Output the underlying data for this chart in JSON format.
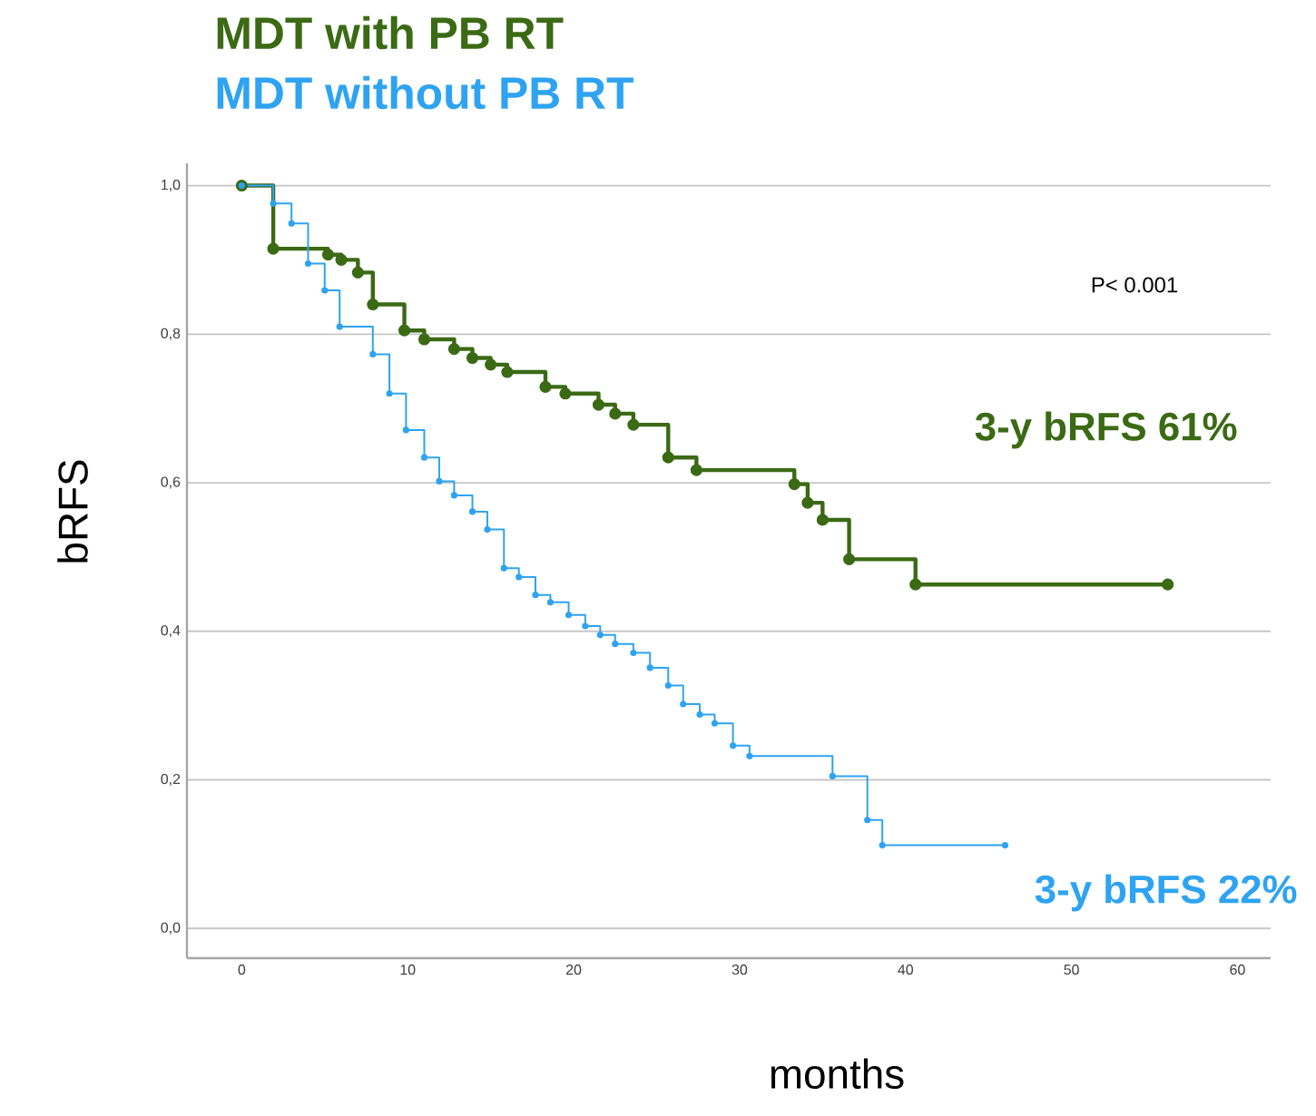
{
  "chart_data": {
    "type": "step",
    "xlabel": "months",
    "ylabel": "bRFS",
    "xlim": [
      -3.3,
      62
    ],
    "ylim": [
      -0.04,
      1.03
    ],
    "xticks": [
      0,
      10,
      20,
      30,
      40,
      50,
      60
    ],
    "yticks": [
      {
        "value": 0,
        "label": "0,0"
      },
      {
        "value": 0.2,
        "label": "0,2"
      },
      {
        "value": 0.4,
        "label": "0,4"
      },
      {
        "value": 0.6,
        "label": "0,6"
      },
      {
        "value": 0.8,
        "label": "0,8"
      },
      {
        "value": 1.0,
        "label": "1,0"
      }
    ],
    "grid": "y",
    "marker": "circle",
    "line_style": "solid",
    "annotations": [
      "P< 0.001",
      "3-y bRFS 61%",
      "3-y bRFS 22%"
    ],
    "series": [
      {
        "name": "MDT with PB RT",
        "color": "#3b6a14",
        "x": [
          0,
          1.9,
          5.2,
          6.0,
          7.0,
          7.9,
          9.8,
          11,
          12.8,
          13.9,
          15,
          16,
          18.3,
          19.5,
          21.5,
          22.5,
          23.6,
          25.7,
          27.4,
          33.3,
          34.1,
          35,
          36.6,
          40.6,
          55.8
        ],
        "values": [
          1.0,
          0.915,
          0.907,
          0.9,
          0.883,
          0.84,
          0.805,
          0.793,
          0.78,
          0.768,
          0.759,
          0.749,
          0.729,
          0.72,
          0.705,
          0.693,
          0.678,
          0.634,
          0.617,
          0.598,
          0.573,
          0.55,
          0.497,
          0.463,
          0.463
        ]
      },
      {
        "name": "MDT without PB RT",
        "color": "#2ea3f2",
        "x": [
          0,
          1.9,
          3.0,
          4.0,
          5.0,
          5.9,
          7.9,
          8.9,
          9.9,
          11,
          11.9,
          12.8,
          13.9,
          14.8,
          15.8,
          16.7,
          17.7,
          18.6,
          19.7,
          20.7,
          21.6,
          22.5,
          23.6,
          24.6,
          25.7,
          26.6,
          27.6,
          28.5,
          29.6,
          30.6,
          35.6,
          37.7,
          38.6,
          46
        ],
        "values": [
          1.0,
          0.976,
          0.949,
          0.895,
          0.859,
          0.81,
          0.773,
          0.72,
          0.671,
          0.634,
          0.602,
          0.583,
          0.561,
          0.537,
          0.485,
          0.473,
          0.449,
          0.439,
          0.422,
          0.407,
          0.395,
          0.383,
          0.371,
          0.351,
          0.327,
          0.302,
          0.288,
          0.276,
          0.246,
          0.232,
          0.205,
          0.146,
          0.112,
          0.112
        ]
      }
    ]
  }
}
